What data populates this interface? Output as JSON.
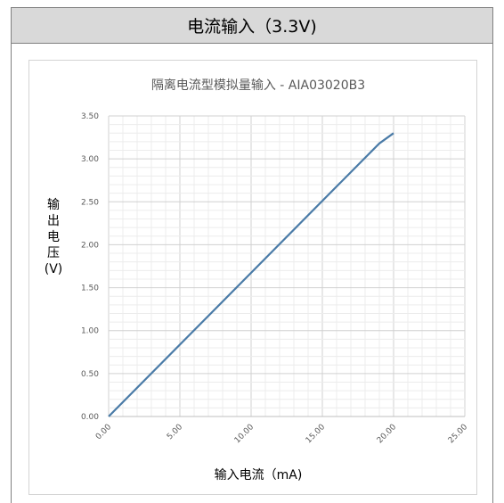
{
  "panel": {
    "header_title": "电流输入（3.3V)"
  },
  "chart_data": {
    "type": "line",
    "title": "隔离电流型模拟量输入 - AIA03020B3",
    "xlabel": "输入电流（mA)",
    "ylabel_lines": [
      "输",
      "出",
      "电",
      "压",
      "(V)"
    ],
    "x_ticks": [
      "0.00",
      "5.00",
      "10.00",
      "15.00",
      "20.00",
      "25.00"
    ],
    "y_ticks": [
      "0.00",
      "0.50",
      "1.00",
      "1.50",
      "2.00",
      "2.50",
      "3.00",
      "3.50"
    ],
    "xlim": [
      0,
      25
    ],
    "ylim": [
      0,
      3.5
    ],
    "grid": true,
    "line_color": "#4a7ba7",
    "series": [
      {
        "x": [
          0,
          19,
          20
        ],
        "y": [
          0,
          3.18,
          3.3
        ]
      }
    ]
  }
}
